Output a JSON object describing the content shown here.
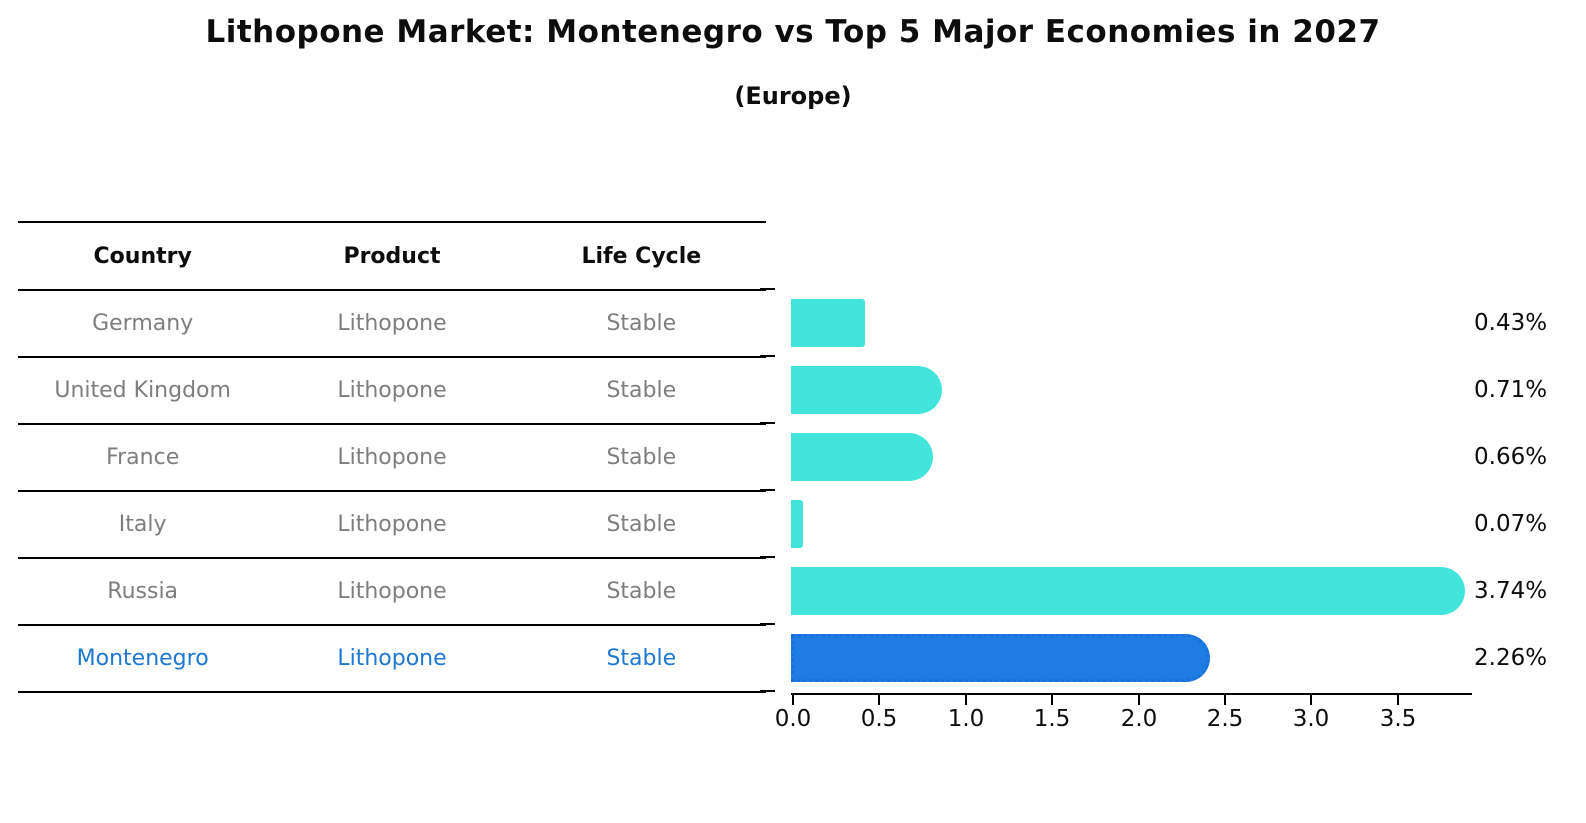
{
  "title": "Lithopone Market: Montenegro vs Top 5 Major Economies in 2027",
  "subtitle": "(Europe)",
  "table": {
    "headers": [
      "Country",
      "Product",
      "Life Cycle"
    ],
    "rows": [
      {
        "country": "Germany",
        "product": "Lithopone",
        "life_cycle": "Stable",
        "highlight": false
      },
      {
        "country": "United Kingdom",
        "product": "Lithopone",
        "life_cycle": "Stable",
        "highlight": false
      },
      {
        "country": "France",
        "product": "Lithopone",
        "life_cycle": "Stable",
        "highlight": false
      },
      {
        "country": "Italy",
        "product": "Lithopone",
        "life_cycle": "Stable",
        "highlight": false
      },
      {
        "country": "Russia",
        "product": "Lithopone",
        "life_cycle": "Stable",
        "highlight": false
      },
      {
        "country": "Montenegro",
        "product": "Lithopone",
        "life_cycle": "Stable",
        "highlight": true
      }
    ]
  },
  "chart_data": {
    "type": "bar",
    "orientation": "horizontal",
    "title": "Lithopone Market: Montenegro vs Top 5 Major Economies in 2027 (Europe)",
    "categories": [
      "Germany",
      "United Kingdom",
      "France",
      "Italy",
      "Russia",
      "Montenegro"
    ],
    "values": [
      0.43,
      0.71,
      0.66,
      0.07,
      3.74,
      2.26
    ],
    "value_labels": [
      "0.43%",
      "0.71%",
      "0.66%",
      "0.07%",
      "3.74%",
      "2.26%"
    ],
    "unit": "%",
    "xlim": [
      0.0,
      3.93
    ],
    "xticks": [
      "0.0",
      "0.5",
      "1.0",
      "1.5",
      "2.0",
      "2.5",
      "3.0",
      "3.5"
    ],
    "grid": false,
    "legend": false,
    "highlight_index": 5,
    "bar_color": "#42e4dc",
    "highlight_bar_color": "#1e7de5",
    "highlight_text_color": "#1e78d2",
    "text_color_muted": "#7e7e7e"
  }
}
